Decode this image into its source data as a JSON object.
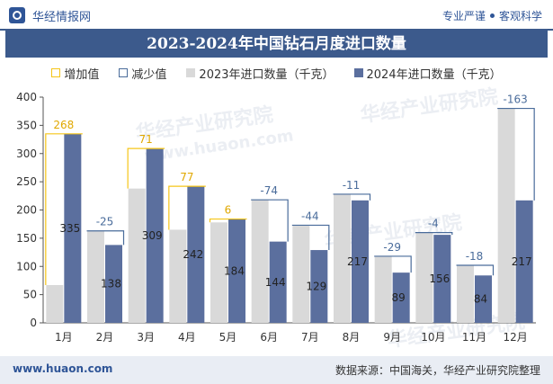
{
  "header": {
    "brand": "华经情报网",
    "tagline_left": "专业严谨",
    "tagline_right": "客观科学",
    "logo_icon": "huajing-logo-icon"
  },
  "title": "2023-2024年中国钻石月度进口数量",
  "legend": {
    "increase": "增加值",
    "decrease": "减少值",
    "series_2023": "2023年进口数量（千克）",
    "series_2024": "2024年进口数量（千克）"
  },
  "colors": {
    "series_2023": "#d9d9d9",
    "series_2024": "#5b6f9e",
    "increase": "#f5c518",
    "decrease": "#4a6c9b",
    "header": "#3c5a8c"
  },
  "watermarks": [
    "华经产业研究院",
    "www.huaon.com"
  ],
  "chart_data": {
    "type": "bar",
    "categories": [
      "1月",
      "2月",
      "3月",
      "4月",
      "5月",
      "6月",
      "7月",
      "8月",
      "9月",
      "10月",
      "11月",
      "12月"
    ],
    "series": [
      {
        "name": "2023年进口数量（千克）",
        "values": [
          67,
          163,
          238,
          165,
          178,
          218,
          173,
          228,
          118,
          160,
          102,
          380
        ]
      },
      {
        "name": "2024年进口数量（千克）",
        "values": [
          335,
          138,
          309,
          242,
          184,
          144,
          129,
          217,
          89,
          156,
          84,
          217
        ]
      }
    ],
    "change_values": [
      268,
      -25,
      71,
      77,
      6,
      -74,
      -44,
      -11,
      -29,
      -4,
      -18,
      -163
    ],
    "change_labels": [
      "268",
      "-25",
      "71",
      "77",
      "6",
      "-74",
      "-44",
      "-11",
      "-29",
      "-4",
      "-18",
      "-163"
    ],
    "data_labels_2024": [
      "335",
      "138",
      "309",
      "242",
      "184",
      "144",
      "129",
      "217",
      "89",
      "156",
      "84",
      "217"
    ],
    "y_ticks": [
      "0",
      "50",
      "100",
      "150",
      "200",
      "250",
      "300",
      "350",
      "400"
    ],
    "ylim": [
      0,
      400
    ],
    "grid": false,
    "legend_position": "top"
  },
  "footer": {
    "url": "www.huaon.com",
    "source": "数据来源：中国海关，华经产业研究院整理"
  }
}
